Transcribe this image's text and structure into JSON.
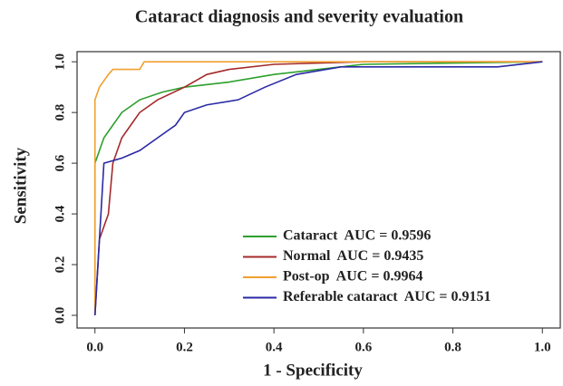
{
  "chart_data": {
    "type": "line",
    "title": "Cataract diagnosis and severity evaluation",
    "xlabel": "1 - Specificity",
    "ylabel": "Sensitivity",
    "xlim": [
      -0.04,
      1.04
    ],
    "ylim": [
      -0.05,
      1.04
    ],
    "xticks": [
      {
        "value": 0,
        "label": "0.0"
      },
      0.2,
      0.4,
      0.6,
      0.8,
      {
        "value": 1,
        "label": "1.0"
      }
    ],
    "yticks": [
      {
        "value": 0,
        "label": "0.0"
      },
      0.2,
      0.4,
      0.6,
      0.8,
      {
        "value": 1,
        "label": "1.0"
      }
    ],
    "legend": "lower right",
    "series": [
      {
        "name": "Cataract  AUC = 0.9596",
        "color": "#2ca02c",
        "x": [
          0,
          0,
          0.01,
          0.02,
          0.04,
          0.06,
          0.1,
          0.15,
          0.2,
          0.3,
          0.4,
          0.5,
          0.6,
          1
        ],
        "values": [
          0,
          0.6,
          0.65,
          0.7,
          0.75,
          0.8,
          0.85,
          0.88,
          0.9,
          0.92,
          0.95,
          0.97,
          0.99,
          1
        ]
      },
      {
        "name": "Normal  AUC = 0.9435",
        "color": "#a52a2a",
        "x": [
          0,
          0.01,
          0.03,
          0.04,
          0.06,
          0.08,
          0.1,
          0.14,
          0.2,
          0.25,
          0.3,
          0.4,
          0.6,
          1
        ],
        "values": [
          0,
          0.3,
          0.4,
          0.6,
          0.7,
          0.75,
          0.8,
          0.85,
          0.9,
          0.95,
          0.97,
          0.99,
          1,
          1
        ]
      },
      {
        "name": "Post-op  AUC = 0.9964",
        "color": "#f0a030",
        "x": [
          0,
          0,
          0.01,
          0.03,
          0.04,
          0.1,
          0.11,
          1
        ],
        "values": [
          0,
          0.85,
          0.9,
          0.95,
          0.97,
          0.97,
          1,
          1
        ]
      },
      {
        "name": "Referable cataract  AUC = 0.9151",
        "color": "#2a2aa5",
        "x": [
          0,
          0.01,
          0.02,
          0.06,
          0.1,
          0.14,
          0.18,
          0.2,
          0.25,
          0.32,
          0.38,
          0.45,
          0.55,
          0.9,
          1
        ],
        "values": [
          0,
          0.3,
          0.6,
          0.62,
          0.65,
          0.7,
          0.75,
          0.8,
          0.83,
          0.85,
          0.9,
          0.95,
          0.98,
          0.98,
          1
        ]
      }
    ]
  }
}
